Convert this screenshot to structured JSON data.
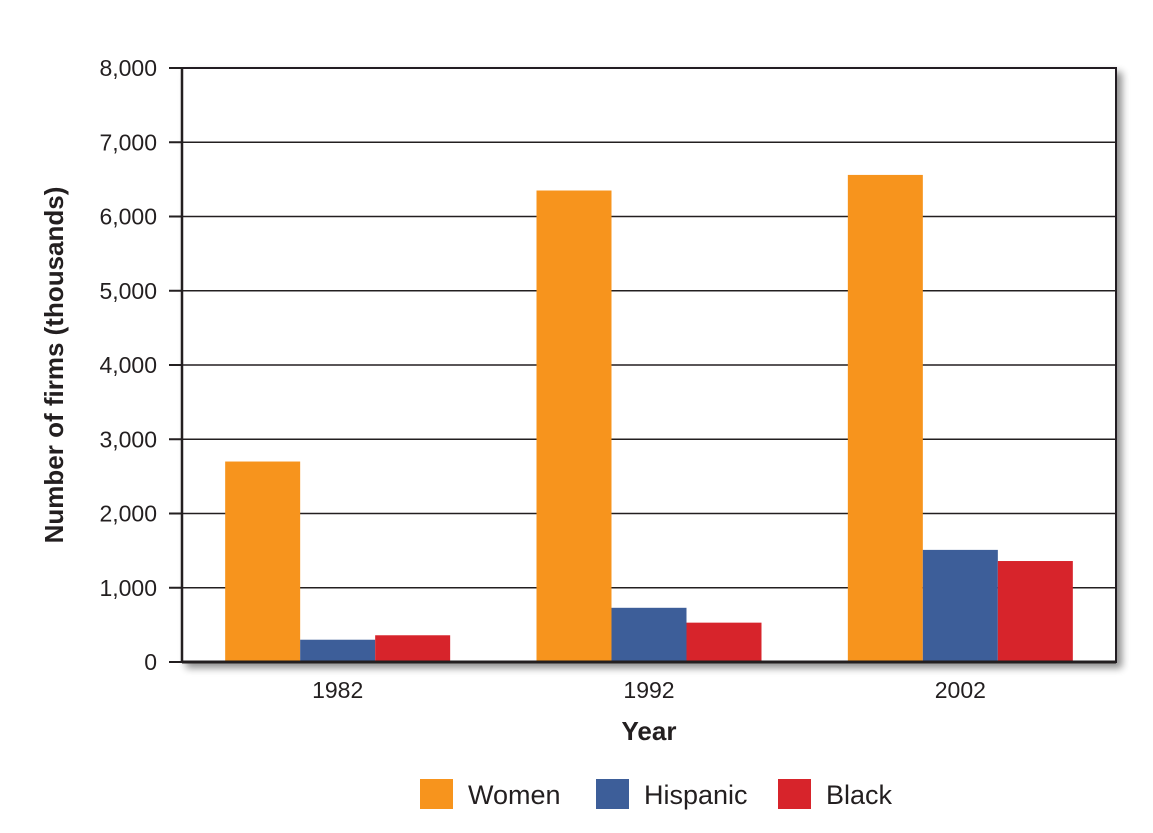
{
  "chart_data": {
    "type": "bar",
    "categories": [
      "1982",
      "1992",
      "2002"
    ],
    "series": [
      {
        "name": "Women",
        "values": [
          2700,
          6350,
          6560
        ],
        "color": "#f7941d"
      },
      {
        "name": "Hispanic",
        "values": [
          300,
          730,
          1510
        ],
        "color": "#3d5e99"
      },
      {
        "name": "Black",
        "values": [
          360,
          530,
          1360
        ],
        "color": "#d7242b"
      }
    ],
    "xlabel": "Year",
    "ylabel": "Number of firms (thousands)",
    "ylim": [
      0,
      8000
    ],
    "yticks": [
      "0",
      "1,000",
      "2,000",
      "3,000",
      "4,000",
      "5,000",
      "6,000",
      "7,000",
      "8,000"
    ],
    "grid": true,
    "legend_position": "bottom"
  }
}
